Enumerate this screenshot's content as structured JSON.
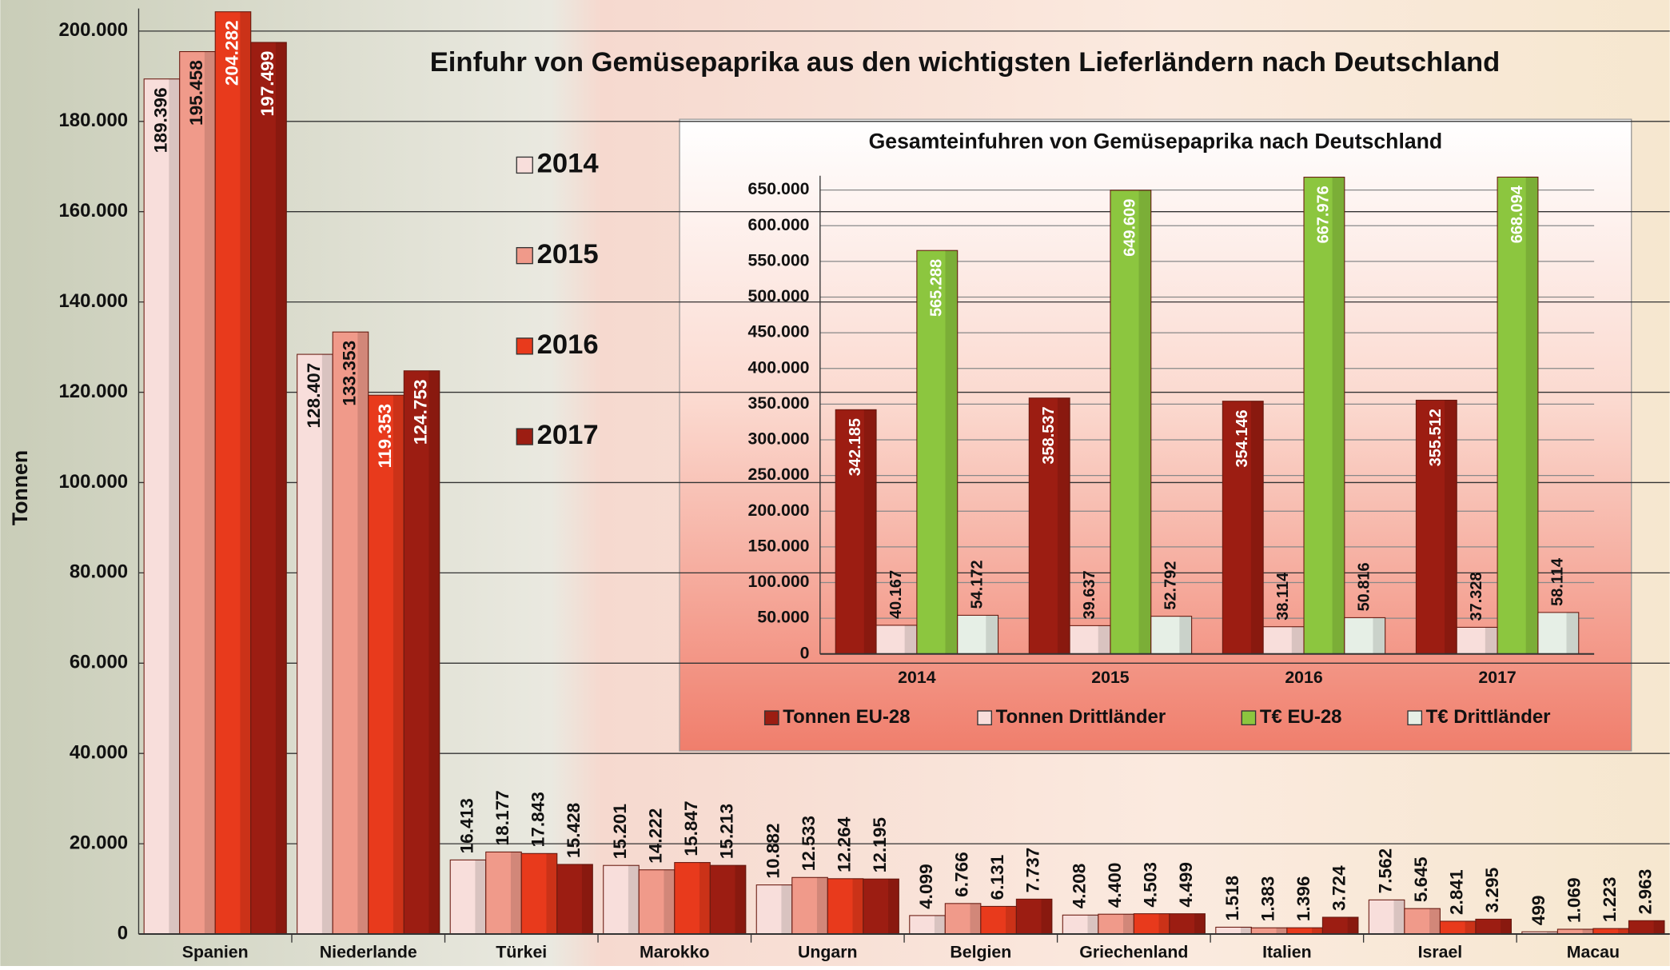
{
  "chart_data": [
    {
      "type": "bar",
      "title": "Einfuhr von Gemüsepaprika aus den wichtigsten Lieferländern nach Deutschland",
      "ylabel": "Tonnen",
      "categories": [
        "Spanien",
        "Niederlande",
        "Türkei",
        "Marokko",
        "Ungarn",
        "Belgien",
        "Griechenland",
        "Italien",
        "Israel",
        "Macau"
      ],
      "series": [
        {
          "name": "2014",
          "color": "#f8dedb",
          "values": [
            189396,
            128407,
            16413,
            15201,
            10882,
            4099,
            4208,
            1518,
            7562,
            499
          ],
          "value_labels": [
            "189.396",
            "128.407",
            "16.413",
            "15.201",
            "10.882",
            "4.099",
            "4.208",
            "1.518",
            "7.562",
            "499"
          ]
        },
        {
          "name": "2015",
          "color": "#f09a8a",
          "values": [
            195458,
            133353,
            18177,
            14222,
            12533,
            6766,
            4400,
            1383,
            5645,
            1069
          ],
          "value_labels": [
            "195.458",
            "133.353",
            "18.177",
            "14.222",
            "12.533",
            "6.766",
            "4.400",
            "1.383",
            "5.645",
            "1.069"
          ]
        },
        {
          "name": "2016",
          "color": "#e83a1c",
          "values": [
            204282,
            119353,
            17843,
            15847,
            12264,
            6131,
            4503,
            1396,
            2841,
            1223
          ],
          "value_labels": [
            "204.282",
            "119.353",
            "17.843",
            "15.847",
            "12.264",
            "6.131",
            "4.503",
            "1.396",
            "2.841",
            "1.223"
          ]
        },
        {
          "name": "2017",
          "color": "#9c1d12",
          "values": [
            197499,
            124753,
            15428,
            15213,
            12195,
            7737,
            4499,
            3724,
            3295,
            2963
          ],
          "value_labels": [
            "197.499",
            "124.753",
            "15.428",
            "15.213",
            "12.195",
            "7.737",
            "4.499",
            "3.724",
            "3.295",
            "2.963"
          ]
        }
      ],
      "ylim": [
        0,
        205000
      ],
      "yticks": [
        0,
        {
          "value": 20000,
          "label": "20.000"
        },
        {
          "value": 40000,
          "label": "40.000"
        },
        {
          "value": 60000,
          "label": "60.000"
        },
        {
          "value": 80000,
          "label": "80.000"
        },
        {
          "value": 100000,
          "label": "100.000"
        },
        {
          "value": 120000,
          "label": "120.000"
        },
        {
          "value": 140000,
          "label": "140.000"
        },
        {
          "value": 160000,
          "label": "160.000"
        },
        {
          "value": 180000,
          "label": "180.000"
        },
        {
          "value": 200000,
          "label": "200.000"
        }
      ],
      "grid": true,
      "legend": "vertical"
    },
    {
      "type": "bar",
      "title": "Gesamteinfuhren von Gemüsepaprika nach Deutschland",
      "categories": [
        "2014",
        "2015",
        "2016",
        "2017"
      ],
      "series": [
        {
          "name": "Tonnen EU-28",
          "color": "#9c1d12",
          "values": [
            342185,
            358537,
            354146,
            355512
          ],
          "value_labels": [
            "342.185",
            "358.537",
            "354.146",
            "355.512"
          ]
        },
        {
          "name": "Tonnen Drittländer",
          "color": "#f8dedb",
          "values": [
            40167,
            39637,
            38114,
            37328
          ],
          "value_labels": [
            "40.167",
            "39.637",
            "38.114",
            "37.328"
          ]
        },
        {
          "name": "T€ EU-28",
          "color": "#8cc63f",
          "values": [
            565288,
            649609,
            667976,
            668094
          ],
          "value_labels": [
            "565.288",
            "649.609",
            "667.976",
            "668.094"
          ]
        },
        {
          "name": "T€ Drittländer",
          "color": "#e6efe6",
          "values": [
            54172,
            52792,
            50816,
            58114
          ],
          "value_labels": [
            "54.172",
            "52.792",
            "50.816",
            "58.114"
          ]
        }
      ],
      "ylim": [
        0,
        670000
      ],
      "yticks": [
        0,
        {
          "value": 50000,
          "label": "50.000"
        },
        {
          "value": 100000,
          "label": "100.000"
        },
        {
          "value": 150000,
          "label": "150.000"
        },
        {
          "value": 200000,
          "label": "200.000"
        },
        {
          "value": 250000,
          "label": "250.000"
        },
        {
          "value": 300000,
          "label": "300.000"
        },
        {
          "value": 350000,
          "label": "350.000"
        },
        {
          "value": 400000,
          "label": "400.000"
        },
        {
          "value": 450000,
          "label": "450.000"
        },
        {
          "value": 500000,
          "label": "500.000"
        },
        {
          "value": 550000,
          "label": "550.000"
        },
        {
          "value": 600000,
          "label": "600.000"
        },
        {
          "value": 650000,
          "label": "650.000"
        }
      ],
      "grid": true,
      "legend": "bottom"
    }
  ]
}
